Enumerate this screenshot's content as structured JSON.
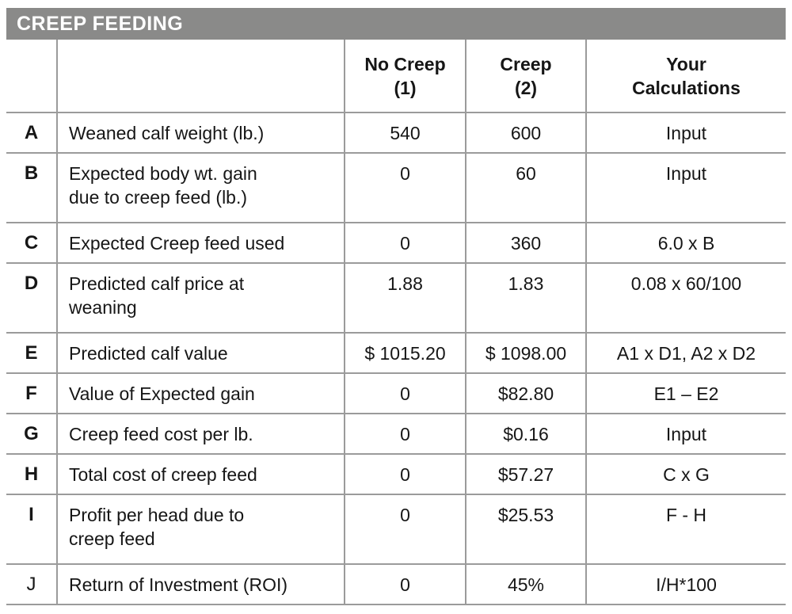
{
  "title": "CREEP FEEDING",
  "header": {
    "no_creep": "No Creep\n(1)",
    "creep": "Creep\n(2)",
    "calculations": "Your\nCalculations"
  },
  "rows": [
    {
      "letter": "A",
      "label": "Weaned calf weight (lb.)",
      "no_creep": "540",
      "creep": "600",
      "calc": "Input"
    },
    {
      "letter": "B",
      "label": "Expected body wt. gain\ndue to creep feed (lb.)",
      "no_creep": "0",
      "creep": "60",
      "calc": "Input"
    },
    {
      "letter": "C",
      "label": "Expected Creep feed used",
      "no_creep": "0",
      "creep": "360",
      "calc": "6.0 x B"
    },
    {
      "letter": "D",
      "label": "Predicted calf price at\nweaning",
      "no_creep": "1.88",
      "creep": "1.83",
      "calc": "0.08 x 60/100"
    },
    {
      "letter": "E",
      "label": "Predicted calf value",
      "no_creep": "$ 1015.20",
      "creep": "$ 1098.00",
      "calc": "A1 x D1, A2 x D2"
    },
    {
      "letter": "F",
      "label": "Value of Expected gain",
      "no_creep": "0",
      "creep": "$82.80",
      "calc": "E1 – E2"
    },
    {
      "letter": "G",
      "label": "Creep feed cost per lb.",
      "no_creep": "0",
      "creep": "$0.16",
      "calc": "Input"
    },
    {
      "letter": "H",
      "label": "Total cost of creep feed",
      "no_creep": "0",
      "creep": "$57.27",
      "calc": "C x G"
    },
    {
      "letter": "I",
      "label": "Profit per head due to\ncreep feed",
      "no_creep": "0",
      "creep": "$25.53",
      "calc": "F - H"
    },
    {
      "letter": "J",
      "label": "Return of Investment (ROI)",
      "no_creep": "0",
      "creep": "45%",
      "calc": "I/H*100"
    }
  ],
  "colors": {
    "title_bar_bg": "#8a8a89",
    "title_text": "#ffffff",
    "grid_line": "#9b9b9b",
    "body_text": "#161616"
  }
}
